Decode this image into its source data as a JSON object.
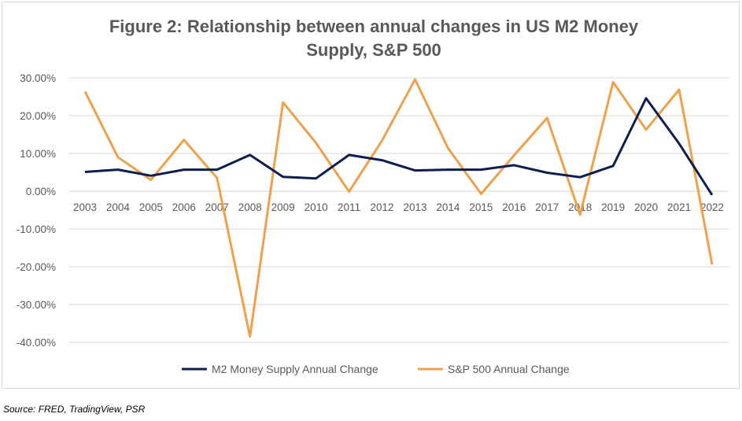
{
  "chart_data": {
    "type": "line",
    "title_line1": "Figure 2: Relationship between annual changes in US M2 Money",
    "title_line2": "Supply, S&P 500",
    "categories": [
      "2003",
      "2004",
      "2005",
      "2006",
      "2007",
      "2008",
      "2009",
      "2010",
      "2011",
      "2012",
      "2013",
      "2014",
      "2015",
      "2016",
      "2017",
      "2018",
      "2019",
      "2020",
      "2021",
      "2022"
    ],
    "y_ticks": [
      "30.00%",
      "20.00%",
      "10.00%",
      "0.00%",
      "-10.00%",
      "-20.00%",
      "-30.00%",
      "-40.00%"
    ],
    "ylim": [
      -40,
      30
    ],
    "grid": true,
    "legend_position": "bottom",
    "series": [
      {
        "name": "M2 Money Supply Annual Change",
        "color": "#0d1f4f",
        "values": [
          5.1,
          5.7,
          4.1,
          5.7,
          5.7,
          9.6,
          3.8,
          3.4,
          9.6,
          8.2,
          5.5,
          5.7,
          5.7,
          6.9,
          4.9,
          3.7,
          6.7,
          24.6,
          12.6,
          -1.0
        ]
      },
      {
        "name": "S&P 500 Annual Change",
        "color": "#f0a04b",
        "values": [
          26.4,
          9.0,
          3.0,
          13.6,
          3.5,
          -38.5,
          23.5,
          12.8,
          -0.1,
          13.4,
          29.6,
          11.4,
          -0.7,
          9.5,
          19.4,
          -6.2,
          28.9,
          16.3,
          26.9,
          -19.4
        ]
      }
    ]
  },
  "footer": {
    "source": "Source: FRED, TradingView, PSR"
  }
}
